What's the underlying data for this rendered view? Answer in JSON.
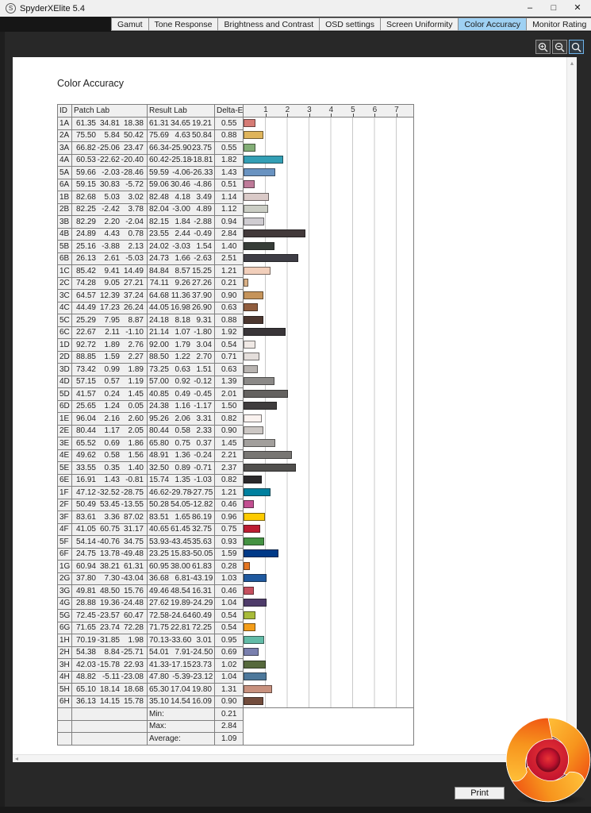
{
  "window": {
    "title": "SpyderXElite 5.4",
    "controls": {
      "minimize": "–",
      "maximize": "□",
      "close": "✕"
    }
  },
  "tabs": {
    "items": [
      "Gamut",
      "Tone Response",
      "Brightness and Contrast",
      "OSD settings",
      "Screen Uniformity",
      "Color Accuracy",
      "Monitor Rating"
    ],
    "active": "Color Accuracy"
  },
  "zoom_toolbar": {
    "buttons": [
      {
        "name": "zoom-in",
        "glyph": "magnifier-plus"
      },
      {
        "name": "zoom-out",
        "glyph": "magnifier-minus"
      },
      {
        "name": "zoom-reset",
        "glyph": "magnifier",
        "selected": true
      }
    ]
  },
  "report": {
    "heading": "Color Accuracy"
  },
  "scrollbars": {
    "up_glyph": "▴",
    "left_glyph": "◂"
  },
  "table": {
    "columns": {
      "id": "ID",
      "patch": "Patch Lab",
      "result": "Result Lab",
      "delta": "Delta-E"
    },
    "axis_ticks": [
      1,
      2,
      3,
      4,
      5,
      6,
      7
    ],
    "axis_max": 7.8,
    "rows": [
      {
        "id": "1A",
        "patch": [
          61.35,
          34.81,
          18.38
        ],
        "result": [
          61.31,
          34.65,
          19.21
        ],
        "delta": 0.55
      },
      {
        "id": "2A",
        "patch": [
          75.5,
          5.84,
          50.42
        ],
        "result": [
          75.69,
          4.63,
          50.84
        ],
        "delta": 0.88
      },
      {
        "id": "3A",
        "patch": [
          66.82,
          -25.06,
          23.47
        ],
        "result": [
          66.34,
          -25.9,
          23.75
        ],
        "delta": 0.55
      },
      {
        "id": "4A",
        "patch": [
          60.53,
          -22.62,
          -20.4
        ],
        "result": [
          60.42,
          -25.18,
          -18.81
        ],
        "delta": 1.82
      },
      {
        "id": "5A",
        "patch": [
          59.66,
          -2.03,
          -28.46
        ],
        "result": [
          59.59,
          -4.06,
          -26.33
        ],
        "delta": 1.43
      },
      {
        "id": "6A",
        "patch": [
          59.15,
          30.83,
          -5.72
        ],
        "result": [
          59.06,
          30.46,
          -4.86
        ],
        "delta": 0.51
      },
      {
        "id": "1B",
        "patch": [
          82.68,
          5.03,
          3.02
        ],
        "result": [
          82.48,
          4.18,
          3.49
        ],
        "delta": 1.14
      },
      {
        "id": "2B",
        "patch": [
          82.25,
          -2.42,
          3.78
        ],
        "result": [
          82.04,
          -3.0,
          4.89
        ],
        "delta": 1.12
      },
      {
        "id": "3B",
        "patch": [
          82.29,
          2.2,
          -2.04
        ],
        "result": [
          82.15,
          1.84,
          -2.88
        ],
        "delta": 0.94
      },
      {
        "id": "4B",
        "patch": [
          24.89,
          4.43,
          0.78
        ],
        "result": [
          23.55,
          2.44,
          -0.49
        ],
        "delta": 2.84
      },
      {
        "id": "5B",
        "patch": [
          25.16,
          -3.88,
          2.13
        ],
        "result": [
          24.02,
          -3.03,
          1.54
        ],
        "delta": 1.4
      },
      {
        "id": "6B",
        "patch": [
          26.13,
          2.61,
          -5.03
        ],
        "result": [
          24.73,
          1.66,
          -2.63
        ],
        "delta": 2.51
      },
      {
        "id": "1C",
        "patch": [
          85.42,
          9.41,
          14.49
        ],
        "result": [
          84.84,
          8.57,
          15.25
        ],
        "delta": 1.21
      },
      {
        "id": "2C",
        "patch": [
          74.28,
          9.05,
          27.21
        ],
        "result": [
          74.11,
          9.26,
          27.26
        ],
        "delta": 0.21
      },
      {
        "id": "3C",
        "patch": [
          64.57,
          12.39,
          37.24
        ],
        "result": [
          64.68,
          11.36,
          37.9
        ],
        "delta": 0.9
      },
      {
        "id": "4C",
        "patch": [
          44.49,
          17.23,
          26.24
        ],
        "result": [
          44.05,
          16.98,
          26.9
        ],
        "delta": 0.63
      },
      {
        "id": "5C",
        "patch": [
          25.29,
          7.95,
          8.87
        ],
        "result": [
          24.18,
          8.18,
          9.31
        ],
        "delta": 0.88
      },
      {
        "id": "6C",
        "patch": [
          22.67,
          2.11,
          -1.1
        ],
        "result": [
          21.14,
          1.07,
          -1.8
        ],
        "delta": 1.92
      },
      {
        "id": "1D",
        "patch": [
          92.72,
          1.89,
          2.76
        ],
        "result": [
          92.0,
          1.79,
          3.04
        ],
        "delta": 0.54
      },
      {
        "id": "2D",
        "patch": [
          88.85,
          1.59,
          2.27
        ],
        "result": [
          88.5,
          1.22,
          2.7
        ],
        "delta": 0.71
      },
      {
        "id": "3D",
        "patch": [
          73.42,
          0.99,
          1.89
        ],
        "result": [
          73.25,
          0.63,
          1.51
        ],
        "delta": 0.63
      },
      {
        "id": "4D",
        "patch": [
          57.15,
          0.57,
          1.19
        ],
        "result": [
          57.0,
          0.92,
          -0.12
        ],
        "delta": 1.39
      },
      {
        "id": "5D",
        "patch": [
          41.57,
          0.24,
          1.45
        ],
        "result": [
          40.85,
          0.49,
          -0.45
        ],
        "delta": 2.01
      },
      {
        "id": "6D",
        "patch": [
          25.65,
          1.24,
          0.05
        ],
        "result": [
          24.38,
          1.16,
          -1.17
        ],
        "delta": 1.5
      },
      {
        "id": "1E",
        "patch": [
          96.04,
          2.16,
          2.6
        ],
        "result": [
          95.26,
          2.06,
          3.31
        ],
        "delta": 0.82
      },
      {
        "id": "2E",
        "patch": [
          80.44,
          1.17,
          2.05
        ],
        "result": [
          80.44,
          0.58,
          2.33
        ],
        "delta": 0.9
      },
      {
        "id": "3E",
        "patch": [
          65.52,
          0.69,
          1.86
        ],
        "result": [
          65.8,
          0.75,
          0.37
        ],
        "delta": 1.45
      },
      {
        "id": "4E",
        "patch": [
          49.62,
          0.58,
          1.56
        ],
        "result": [
          48.91,
          1.36,
          -0.24
        ],
        "delta": 2.21
      },
      {
        "id": "5E",
        "patch": [
          33.55,
          0.35,
          1.4
        ],
        "result": [
          32.5,
          0.89,
          -0.71
        ],
        "delta": 2.37
      },
      {
        "id": "6E",
        "patch": [
          16.91,
          1.43,
          -0.81
        ],
        "result": [
          15.74,
          1.35,
          -1.03
        ],
        "delta": 0.82
      },
      {
        "id": "1F",
        "patch": [
          47.12,
          -32.52,
          -28.75
        ],
        "result": [
          46.62,
          -29.78,
          -27.75
        ],
        "delta": 1.21
      },
      {
        "id": "2F",
        "patch": [
          50.49,
          53.45,
          -13.55
        ],
        "result": [
          50.28,
          54.05,
          -12.82
        ],
        "delta": 0.46
      },
      {
        "id": "3F",
        "patch": [
          83.61,
          3.36,
          87.02
        ],
        "result": [
          83.51,
          1.65,
          86.19
        ],
        "delta": 0.96
      },
      {
        "id": "4F",
        "patch": [
          41.05,
          60.75,
          31.17
        ],
        "result": [
          40.65,
          61.45,
          32.75
        ],
        "delta": 0.75
      },
      {
        "id": "5F",
        "patch": [
          54.14,
          -40.76,
          34.75
        ],
        "result": [
          53.93,
          -43.45,
          35.63
        ],
        "delta": 0.93
      },
      {
        "id": "6F",
        "patch": [
          24.75,
          13.78,
          -49.48
        ],
        "result": [
          23.25,
          15.83,
          -50.05
        ],
        "delta": 1.59
      },
      {
        "id": "1G",
        "patch": [
          60.94,
          38.21,
          61.31
        ],
        "result": [
          60.95,
          38.0,
          61.83
        ],
        "delta": 0.28
      },
      {
        "id": "2G",
        "patch": [
          37.8,
          7.3,
          -43.04
        ],
        "result": [
          36.68,
          6.81,
          -43.19
        ],
        "delta": 1.03
      },
      {
        "id": "3G",
        "patch": [
          49.81,
          48.5,
          15.76
        ],
        "result": [
          49.46,
          48.54,
          16.31
        ],
        "delta": 0.46
      },
      {
        "id": "4G",
        "patch": [
          28.88,
          19.36,
          -24.48
        ],
        "result": [
          27.62,
          19.89,
          -24.29
        ],
        "delta": 1.04
      },
      {
        "id": "5G",
        "patch": [
          72.45,
          -23.57,
          60.47
        ],
        "result": [
          72.58,
          -24.64,
          60.49
        ],
        "delta": 0.54
      },
      {
        "id": "6G",
        "patch": [
          71.65,
          23.74,
          72.28
        ],
        "result": [
          71.75,
          22.81,
          72.25
        ],
        "delta": 0.54
      },
      {
        "id": "1H",
        "patch": [
          70.19,
          -31.85,
          1.98
        ],
        "result": [
          70.13,
          -33.6,
          3.01
        ],
        "delta": 0.95
      },
      {
        "id": "2H",
        "patch": [
          54.38,
          8.84,
          -25.71
        ],
        "result": [
          54.01,
          7.91,
          -24.5
        ],
        "delta": 0.69
      },
      {
        "id": "3H",
        "patch": [
          42.03,
          -15.78,
          22.93
        ],
        "result": [
          41.33,
          -17.15,
          23.73
        ],
        "delta": 1.02
      },
      {
        "id": "4H",
        "patch": [
          48.82,
          -5.11,
          -23.08
        ],
        "result": [
          47.8,
          -5.39,
          -23.12
        ],
        "delta": 1.04
      },
      {
        "id": "5H",
        "patch": [
          65.1,
          18.14,
          18.68
        ],
        "result": [
          65.3,
          17.04,
          19.8
        ],
        "delta": 1.31
      },
      {
        "id": "6H",
        "patch": [
          36.13,
          14.15,
          15.78
        ],
        "result": [
          35.1,
          14.54,
          16.09
        ],
        "delta": 0.9
      }
    ],
    "summary": [
      {
        "label": "Min:",
        "value": 0.21
      },
      {
        "label": "Max:",
        "value": 2.84
      },
      {
        "label": "Average:",
        "value": 1.09
      }
    ]
  },
  "footer": {
    "print_label": "Print"
  },
  "logo": {
    "name": "spyder-swirl-logo",
    "colors": {
      "orange": "#f7941d",
      "orange_deep": "#ef4d12",
      "crimson": "#c0112e",
      "maroon": "#4a0817"
    }
  }
}
